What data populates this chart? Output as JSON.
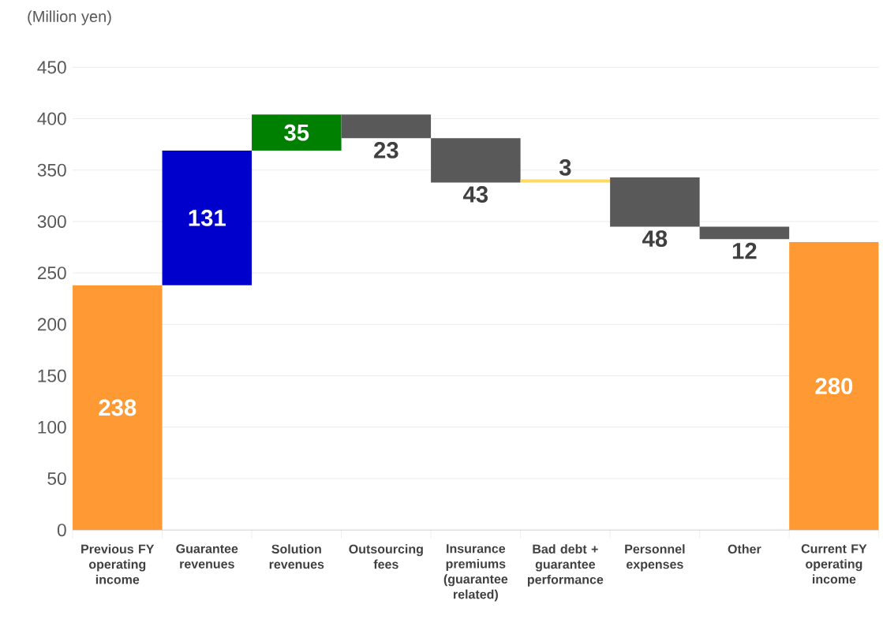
{
  "chart_data": {
    "type": "bar",
    "ylabel": "(Million yen)",
    "categories": [
      "Previous FY operating income",
      "Guarantee revenues",
      "Solution revenues",
      "Outsourcing fees",
      "Insurance premiums (guarantee related)",
      "Bad debt + guarantee performance",
      "Personnel expenses",
      "Other",
      "Current FY operating income"
    ],
    "values": [
      238,
      131,
      35,
      -23,
      -43,
      -3,
      -48,
      -12,
      280
    ],
    "base": [
      0,
      238,
      369,
      404,
      381,
      341,
      343,
      295,
      0
    ],
    "colors": [
      "#ff9933",
      "#0000cc",
      "#008000",
      "#595959",
      "#595959",
      "#ffd966",
      "#595959",
      "#595959",
      "#ff9933"
    ],
    "value_labels": [
      "238",
      "131",
      "35",
      "23",
      "43",
      "3",
      "48",
      "12",
      "280"
    ],
    "ylim": [
      0,
      450
    ],
    "yticks": [
      0,
      50,
      100,
      150,
      200,
      250,
      300,
      350,
      400,
      450
    ],
    "grid": "y"
  }
}
